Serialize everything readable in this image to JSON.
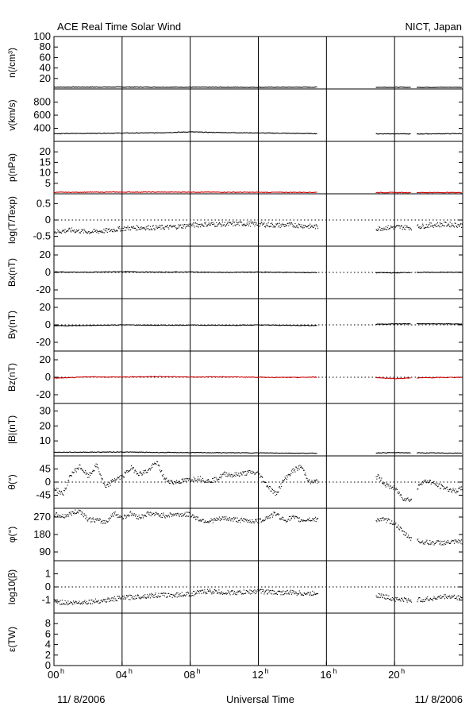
{
  "header": {
    "title": "ACE Real Time Solar Wind",
    "credit": "NICT, Japan"
  },
  "footer": {
    "date_left": "11/ 8/2006",
    "xlabel": "Universal Time",
    "date_right": "11/ 8/2006"
  },
  "colors": {
    "axes": "#000000",
    "data": "#000000",
    "highlight": "#cc0000"
  },
  "chart_data": {
    "type": "line",
    "x_unit": "hour (UT)",
    "xlim": [
      0,
      24
    ],
    "x_ticks": [
      {
        "hour": 0,
        "label": "00",
        "sup": "h"
      },
      {
        "hour": 4,
        "label": "04",
        "sup": "h"
      },
      {
        "hour": 8,
        "label": "08",
        "sup": "h"
      },
      {
        "hour": 12,
        "label": "12",
        "sup": "h"
      },
      {
        "hour": 16,
        "label": "16",
        "sup": "h"
      },
      {
        "hour": 20,
        "label": "20",
        "sup": "h"
      }
    ],
    "vertical_grid_hours": [
      4,
      8,
      12,
      16,
      20
    ],
    "data_gaps": [
      [
        15.5,
        18.9
      ],
      [
        21.0,
        21.3
      ]
    ],
    "panels": [
      {
        "ylabel": "n(/cm³)",
        "ylim": [
          0,
          100
        ],
        "yticks": [
          20,
          40,
          60,
          80,
          100
        ],
        "color": "black",
        "style": "line",
        "series": [
          [
            0,
            3.5
          ],
          [
            4,
            3.6
          ],
          [
            8,
            3.3
          ],
          [
            12,
            3.2
          ],
          [
            15.5,
            3.4
          ],
          [
            19,
            3.3
          ],
          [
            21,
            3.1
          ],
          [
            24,
            3.2
          ]
        ]
      },
      {
        "ylabel": "v(km/s)",
        "ylim": [
          200,
          1000
        ],
        "yticks": [
          400,
          600,
          800
        ],
        "color": "black",
        "style": "line",
        "series": [
          [
            0,
            318
          ],
          [
            2,
            322
          ],
          [
            4,
            326
          ],
          [
            6,
            330
          ],
          [
            8,
            345
          ],
          [
            9,
            338
          ],
          [
            12,
            328
          ],
          [
            14,
            322
          ],
          [
            15.5,
            318
          ],
          [
            19,
            315
          ],
          [
            20,
            316
          ],
          [
            21,
            312
          ],
          [
            21.5,
            314
          ],
          [
            24,
            318
          ]
        ]
      },
      {
        "ylabel": "p(nPa)",
        "ylim": [
          0,
          25
        ],
        "yticks": [
          5,
          10,
          15,
          20
        ],
        "color": "red",
        "style": "line",
        "series": [
          [
            0,
            0.7
          ],
          [
            4,
            0.8
          ],
          [
            8,
            0.8
          ],
          [
            12,
            0.7
          ],
          [
            15.5,
            0.7
          ],
          [
            19,
            0.6
          ],
          [
            21,
            0.6
          ],
          [
            24,
            0.6
          ]
        ]
      },
      {
        "ylabel": "log(T/Texp)",
        "ylim": [
          -0.8,
          0.8
        ],
        "yticks": [
          -0.5,
          0,
          0.5
        ],
        "dotted_zero": true,
        "color": "black",
        "style": "scatter",
        "series": [
          [
            0,
            -0.35
          ],
          [
            1,
            -0.3
          ],
          [
            2,
            -0.35
          ],
          [
            3,
            -0.32
          ],
          [
            4,
            -0.25
          ],
          [
            5,
            -0.22
          ],
          [
            6,
            -0.22
          ],
          [
            7,
            -0.2
          ],
          [
            8,
            -0.15
          ],
          [
            9,
            -0.12
          ],
          [
            10,
            -0.12
          ],
          [
            11,
            -0.1
          ],
          [
            12,
            -0.12
          ],
          [
            13,
            -0.15
          ],
          [
            14,
            -0.14
          ],
          [
            15,
            -0.18
          ],
          [
            15.5,
            -0.2
          ],
          [
            19,
            -0.25
          ],
          [
            20,
            -0.2
          ],
          [
            21,
            -0.22
          ],
          [
            22,
            -0.15
          ],
          [
            23,
            -0.12
          ],
          [
            24,
            -0.15
          ]
        ]
      },
      {
        "ylabel": "Bx(nT)",
        "ylim": [
          -30,
          30
        ],
        "yticks": [
          -20,
          0,
          20
        ],
        "dotted_zero": true,
        "color": "black",
        "style": "line",
        "series": [
          [
            0,
            0.5
          ],
          [
            2,
            0.2
          ],
          [
            4,
            0.8
          ],
          [
            6,
            0.3
          ],
          [
            8,
            0.5
          ],
          [
            10,
            0.0
          ],
          [
            12,
            0.4
          ],
          [
            14,
            0.0
          ],
          [
            15.5,
            -0.2
          ],
          [
            19,
            -0.3
          ],
          [
            20,
            -0.5
          ],
          [
            21,
            0.0
          ],
          [
            24,
            0.2
          ]
        ]
      },
      {
        "ylabel": "By(nT)",
        "ylim": [
          -30,
          30
        ],
        "yticks": [
          -20,
          0,
          20
        ],
        "dotted_zero": true,
        "color": "black",
        "style": "line",
        "series": [
          [
            0,
            -1.0
          ],
          [
            2,
            -0.8
          ],
          [
            4,
            0.0
          ],
          [
            6,
            -0.5
          ],
          [
            8,
            -0.3
          ],
          [
            10,
            -0.5
          ],
          [
            12,
            -0.2
          ],
          [
            14,
            -0.6
          ],
          [
            15.5,
            -0.8
          ],
          [
            19,
            0.8
          ],
          [
            20,
            1.0
          ],
          [
            21,
            1.2
          ],
          [
            24,
            1.0
          ]
        ]
      },
      {
        "ylabel": "Bz(nT)",
        "ylim": [
          -30,
          30
        ],
        "yticks": [
          -20,
          0,
          20
        ],
        "dotted_zero": true,
        "color": "red",
        "style": "line",
        "series": [
          [
            0,
            -1.0
          ],
          [
            1,
            -0.5
          ],
          [
            2,
            0.5
          ],
          [
            4,
            0.2
          ],
          [
            6,
            0.8
          ],
          [
            8,
            0.3
          ],
          [
            10,
            0.5
          ],
          [
            12,
            0.0
          ],
          [
            14,
            -0.3
          ],
          [
            15.5,
            0.2
          ],
          [
            19,
            -0.5
          ],
          [
            20,
            -1.5
          ],
          [
            21,
            -0.8
          ],
          [
            24,
            0.0
          ]
        ]
      },
      {
        "ylabel": "|B|(nT)",
        "ylim": [
          0,
          35
        ],
        "yticks": [
          10,
          20,
          30
        ],
        "color": "black",
        "style": "line",
        "series": [
          [
            0,
            2.4
          ],
          [
            2,
            2.5
          ],
          [
            4,
            2.6
          ],
          [
            6,
            2.3
          ],
          [
            8,
            2.2
          ],
          [
            10,
            2.1
          ],
          [
            12,
            2.0
          ],
          [
            14,
            1.8
          ],
          [
            15.5,
            1.7
          ],
          [
            19,
            2.0
          ],
          [
            20,
            2.2
          ],
          [
            21,
            2.0
          ],
          [
            24,
            1.8
          ]
        ]
      },
      {
        "ylabel": "θ(°)",
        "ylim": [
          -90,
          90
        ],
        "yticks": [
          -45,
          0,
          45
        ],
        "dotted_zero": true,
        "color": "black",
        "style": "scatter",
        "series": [
          [
            0,
            -20
          ],
          [
            0.5,
            -40
          ],
          [
            1,
            30
          ],
          [
            1.5,
            55
          ],
          [
            2,
            20
          ],
          [
            2.5,
            60
          ],
          [
            3,
            -20
          ],
          [
            3.5,
            10
          ],
          [
            4,
            20
          ],
          [
            4.5,
            50
          ],
          [
            5,
            30
          ],
          [
            5.5,
            40
          ],
          [
            6,
            70
          ],
          [
            6.5,
            10
          ],
          [
            7,
            0
          ],
          [
            7.5,
            5
          ],
          [
            8,
            10
          ],
          [
            8.5,
            15
          ],
          [
            9,
            5
          ],
          [
            9.5,
            10
          ],
          [
            10,
            30
          ],
          [
            10.5,
            25
          ],
          [
            11,
            30
          ],
          [
            11.5,
            35
          ],
          [
            12,
            30
          ],
          [
            12.5,
            -10
          ],
          [
            13,
            -40
          ],
          [
            13.5,
            10
          ],
          [
            14,
            40
          ],
          [
            14.5,
            55
          ],
          [
            15,
            0
          ],
          [
            15.5,
            5
          ],
          [
            19,
            20
          ],
          [
            19.5,
            -10
          ],
          [
            20,
            -20
          ],
          [
            20.5,
            -55
          ],
          [
            21,
            -60
          ],
          [
            21.5,
            0
          ],
          [
            22,
            5
          ],
          [
            22.5,
            -10
          ],
          [
            23,
            -20
          ],
          [
            23.5,
            -30
          ],
          [
            24,
            -20
          ]
        ]
      },
      {
        "ylabel": "φ(°)",
        "ylim": [
          45,
          315
        ],
        "yticks": [
          90,
          180,
          270
        ],
        "color": "black",
        "style": "scatter",
        "series": [
          [
            0,
            285
          ],
          [
            0.5,
            275
          ],
          [
            1,
            290
          ],
          [
            1.5,
            305
          ],
          [
            2,
            260
          ],
          [
            2.5,
            255
          ],
          [
            3,
            245
          ],
          [
            3.5,
            290
          ],
          [
            4,
            270
          ],
          [
            4.5,
            290
          ],
          [
            5,
            270
          ],
          [
            5.5,
            290
          ],
          [
            6,
            285
          ],
          [
            6.5,
            280
          ],
          [
            7,
            285
          ],
          [
            8,
            285
          ],
          [
            8.5,
            260
          ],
          [
            9,
            250
          ],
          [
            10,
            265
          ],
          [
            11,
            255
          ],
          [
            12,
            250
          ],
          [
            12.5,
            270
          ],
          [
            13,
            290
          ],
          [
            13.5,
            255
          ],
          [
            14,
            270
          ],
          [
            14.5,
            255
          ],
          [
            15,
            260
          ],
          [
            15.5,
            260
          ],
          [
            19,
            260
          ],
          [
            19.5,
            255
          ],
          [
            20,
            240
          ],
          [
            20.5,
            190
          ],
          [
            21,
            160
          ],
          [
            21.5,
            145
          ],
          [
            22,
            140
          ],
          [
            23,
            140
          ],
          [
            24,
            145
          ]
        ]
      },
      {
        "ylabel": "log10(β)",
        "ylim": [
          -2,
          2
        ],
        "yticks": [
          -1,
          0,
          1
        ],
        "dotted_zero": true,
        "color": "black",
        "style": "scatter",
        "series": [
          [
            0,
            -1.1
          ],
          [
            1,
            -1.2
          ],
          [
            2,
            -1.1
          ],
          [
            3,
            -1.0
          ],
          [
            4,
            -0.8
          ],
          [
            5,
            -0.7
          ],
          [
            6,
            -0.6
          ],
          [
            7,
            -0.6
          ],
          [
            8,
            -0.5
          ],
          [
            9,
            -0.3
          ],
          [
            10,
            -0.4
          ],
          [
            11,
            -0.4
          ],
          [
            12,
            -0.3
          ],
          [
            13,
            -0.4
          ],
          [
            14,
            -0.4
          ],
          [
            15,
            -0.5
          ],
          [
            15.5,
            -0.4
          ],
          [
            19,
            -0.6
          ],
          [
            20,
            -0.9
          ],
          [
            21,
            -1.0
          ],
          [
            22,
            -0.9
          ],
          [
            23,
            -0.7
          ],
          [
            24,
            -0.8
          ]
        ]
      },
      {
        "ylabel": "ε(TW)",
        "ylim": [
          0,
          10
        ],
        "yticks": [
          0,
          2,
          4,
          6,
          8
        ],
        "color": "black",
        "style": "line",
        "series": []
      }
    ]
  }
}
